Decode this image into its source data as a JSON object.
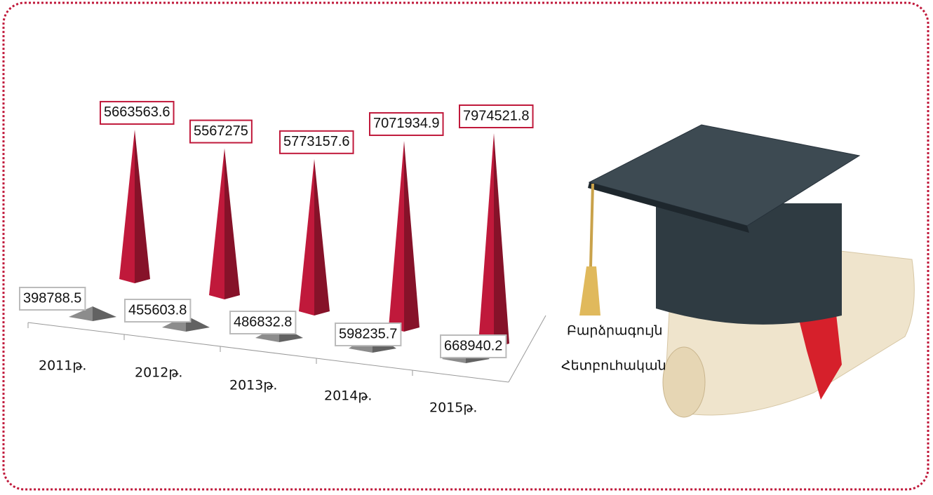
{
  "chart_data": {
    "type": "pyramid",
    "categories": [
      "2011թ.",
      "2012թ.",
      "2013թ.",
      "2014թ.",
      "2015թ."
    ],
    "series": [
      {
        "name": "Բարձրագույն",
        "color": "#c0193b",
        "values": [
          5663563.6,
          5567275,
          5773157.6,
          7071934.9,
          7974521.8
        ]
      },
      {
        "name": "Հետբուհական",
        "color": "#8c8c8c",
        "values": [
          398788.5,
          455603.8,
          486832.8,
          598235.7,
          668940.2
        ]
      }
    ]
  }
}
